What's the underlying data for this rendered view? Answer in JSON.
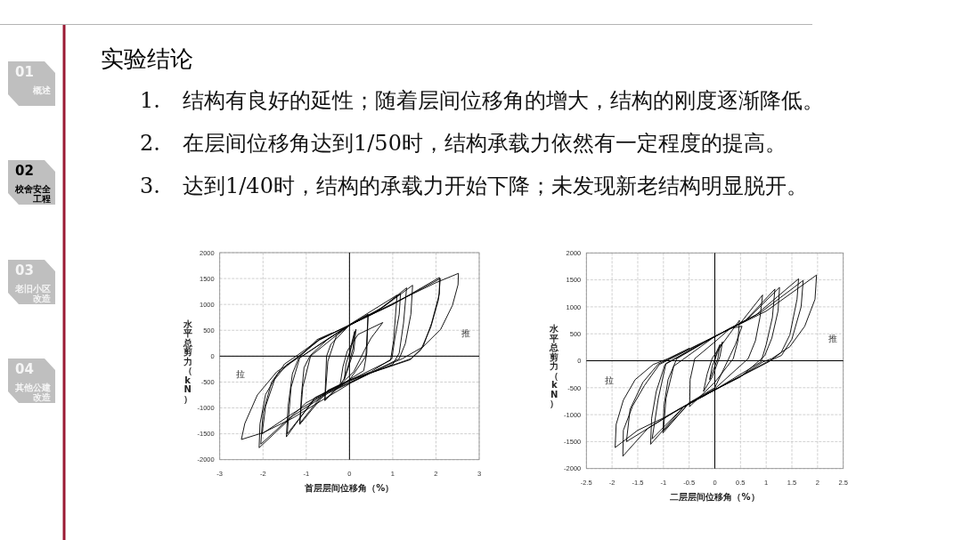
{
  "chart_data": [
    {
      "type": "other",
      "title": "实验结论",
      "annotations": [
        "1.",
        "结构有良好的延性；随着层间位移角的增大，结构的刚度逐渐降低。",
        "2.",
        "在层间位移角达到1/50时，结构承载力依然有一定程度的提高。",
        "3.",
        "达到1/40时，结构的承载力开始下降；未发现新老结构明显脱开。"
      ]
    },
    {
      "type": "other",
      "annotations": [
        "01 概述"
      ],
      "colors": [
        "#f5f5f5"
      ]
    },
    {
      "type": "other",
      "annotations": [
        "02 校舍安全工程"
      ],
      "colors": [
        "#000000"
      ]
    },
    {
      "type": "other",
      "annotations": [
        "03 老旧小区改造"
      ],
      "colors": [
        "#f5f5f5"
      ]
    },
    {
      "type": "other",
      "annotations": [
        "04 其他公建改造"
      ],
      "colors": [
        "#f5f5f5"
      ]
    },
    {
      "type": "line",
      "xlabel": "首层层间位移角（%）",
      "ylabel": "水平总剪力（kN）",
      "xlim": [
        -3,
        3
      ],
      "ylim": [
        -2000,
        2000
      ],
      "xticks": [
        -3,
        -2,
        -1,
        0,
        1,
        2,
        3
      ],
      "yticks": [
        -2000,
        -1500,
        -1000,
        -500,
        0,
        500,
        1000,
        1500,
        2000
      ],
      "grid": true,
      "annotations": [
        "推",
        "拉"
      ],
      "series": [
        {
          "color": "#000000",
          "x": [
            0,
            0.05,
            0.12,
            0.08,
            -0.05,
            -0.12,
            -0.08,
            0.05,
            0.15,
            0.1,
            -0.1,
            -0.22,
            -0.15,
            -0.05,
            0.2,
            0.77,
            0.5,
            0.35,
            0.1,
            -0.3,
            -0.57,
            -0.53,
            -0.43,
            0,
            0.43,
            0.4,
            0.33,
            0,
            -0.3,
            -0.57,
            -0.5,
            -0.3,
            0,
            0.43,
            0.38,
            0,
            -0.5,
            -1.15,
            -1.11,
            -1.05,
            -0.91,
            -0.5,
            0,
            0.6,
            1.18,
            1.15,
            1.05,
            0.98,
            0.5,
            0,
            -0.6,
            -1.15,
            -1.08,
            -0.9,
            0,
            1.1,
            1.02,
            0.95,
            0,
            -0.8,
            -1.46,
            -1.42,
            -1.32,
            -1.18,
            -0.6,
            0,
            0.7,
            1.32,
            1.25,
            1.15,
            1.0,
            0,
            -0.8,
            -1.44,
            -1.35,
            -1.15,
            0,
            0.8,
            1.46,
            1.42,
            1.29,
            1.15,
            0.5,
            -0.5,
            -1.3,
            -2.02,
            -1.94,
            -1.73,
            -1.46,
            -1.11,
            -0.7,
            0,
            1.0,
            2.08,
            2.08,
            1.9,
            1.7,
            1.42,
            0.5,
            -0.5,
            -1.3,
            -2.09,
            -2.07,
            -1.94,
            -1.66,
            -1.25,
            -0.7,
            0,
            1.0,
            2.1,
            2.06,
            1.88,
            1.65,
            1.4,
            0,
            -1.0,
            -2.05,
            -2.0,
            -1.8,
            -1.5,
            -1.2,
            -0.7,
            0,
            1.2,
            2.0,
            2.52,
            2.51,
            2.38,
            2.11,
            1.7,
            1.22,
            0.74,
            0.05,
            -0.63,
            -1.32,
            -2.0,
            -2.5,
            -2.42,
            -2.13,
            -1.68,
            -1.16,
            -0.75,
            -0.4
          ],
          "values": [
            0,
            250,
            480,
            150,
            -250,
            -450,
            -150,
            200,
            520,
            100,
            -400,
            -570,
            -200,
            100,
            420,
            650,
            350,
            120,
            -300,
            -620,
            -850,
            0,
            230,
            600,
            810,
            60,
            -280,
            -450,
            -640,
            -860,
            -100,
            400,
            590,
            800,
            0,
            -460,
            -660,
            -1320,
            -740,
            -220,
            10,
            330,
            600,
            850,
            1210,
            810,
            350,
            -50,
            -300,
            -470,
            -720,
            -1300,
            -600,
            0,
            610,
            1180,
            300,
            -80,
            -470,
            -800,
            -1560,
            -970,
            -340,
            -50,
            280,
            600,
            900,
            1320,
            640,
            60,
            -160,
            -480,
            -830,
            -1500,
            -600,
            -30,
            600,
            960,
            1370,
            810,
            240,
            -50,
            -320,
            -700,
            -1100,
            -1500,
            -970,
            -450,
            -170,
            30,
            320,
            600,
            1000,
            1520,
            1210,
            640,
            180,
            -50,
            -320,
            -720,
            -1150,
            -1770,
            -1310,
            -740,
            -340,
            -50,
            310,
            600,
            1000,
            1500,
            1100,
            560,
            120,
            -70,
            -460,
            -900,
            -1700,
            -1100,
            -500,
            -150,
            20,
            320,
            600,
            1100,
            1420,
            1600,
            1380,
            980,
            520,
            180,
            -50,
            -220,
            -510,
            -850,
            -1200,
            -1480,
            -1610,
            -1300,
            -750,
            -300,
            -20,
            320,
            450
          ]
        }
      ]
    },
    {
      "type": "line",
      "xlabel": "二层层间位移角（%）",
      "ylabel": "水平总剪力（kN）",
      "xlim": [
        -2.5,
        2.5
      ],
      "ylim": [
        -2000,
        2000
      ],
      "xticks": [
        -2.5,
        -2,
        -1.5,
        -1,
        -0.5,
        0,
        0.5,
        1,
        1.5,
        2,
        2.5
      ],
      "yticks": [
        -2000,
        -1500,
        -1000,
        -500,
        0,
        500,
        1000,
        1500,
        2000
      ],
      "grid": true,
      "annotations": [
        "推",
        "拉"
      ],
      "series": [
        {
          "color": "#000000",
          "x": [
            0,
            0.04,
            0.1,
            0.06,
            -0.04,
            -0.1,
            -0.05,
            0.05,
            0.15,
            0.1,
            -0.05,
            -0.22,
            -0.15,
            -0.05,
            0.1,
            0.48,
            0.45,
            0.36,
            0,
            -0.49,
            -0.48,
            -0.39,
            0,
            0.3,
            0.53,
            0.4,
            0.3,
            0,
            -0.5,
            -1.01,
            -0.99,
            -0.91,
            -0.74,
            0,
            0.5,
            0.93,
            0.88,
            0.79,
            0.65,
            0,
            -0.5,
            -1.0,
            -0.95,
            -0.8,
            0,
            0.6,
            1.26,
            1.23,
            1.11,
            0.97,
            0.5,
            0,
            -0.6,
            -1.25,
            -1.23,
            -1.14,
            -0.97,
            0,
            0.6,
            1.17,
            1.12,
            1.0,
            0.9,
            0,
            -0.6,
            -1.22,
            -1.1,
            -0.95,
            0,
            0.8,
            1.63,
            1.6,
            1.46,
            1.29,
            1.05,
            0.5,
            0,
            -0.7,
            -1.3,
            -1.79,
            -1.78,
            -1.6,
            -1.37,
            -1.08,
            0,
            0.9,
            1.72,
            1.68,
            1.5,
            1.3,
            1.0,
            0,
            -0.8,
            -1.72,
            -1.65,
            -1.4,
            -1.1,
            0,
            1.0,
            1.98,
            1.95,
            1.75,
            1.46,
            1.11,
            0.94,
            0.5,
            0,
            -0.5,
            -1.0,
            -1.5,
            -1.94,
            -1.92,
            -1.78,
            -1.55,
            -1.2,
            -0.91,
            -0.5
          ],
          "values": [
            0,
            180,
            300,
            50,
            -200,
            -350,
            -100,
            150,
            350,
            80,
            -300,
            -570,
            -250,
            50,
            250,
            750,
            370,
            40,
            -400,
            -850,
            -350,
            40,
            350,
            600,
            640,
            300,
            100,
            -500,
            -780,
            -1340,
            -840,
            -350,
            40,
            450,
            700,
            1220,
            810,
            370,
            40,
            -520,
            -790,
            -1300,
            -700,
            -100,
            450,
            740,
            1360,
            920,
            420,
            90,
            -300,
            -540,
            -850,
            -1550,
            -1070,
            -570,
            -70,
            450,
            750,
            1330,
            800,
            300,
            -20,
            -540,
            -850,
            -1450,
            -700,
            -50,
            450,
            850,
            1520,
            1140,
            480,
            150,
            -20,
            -290,
            -540,
            -900,
            -1250,
            -1770,
            -1290,
            -840,
            -460,
            -70,
            450,
            900,
            1490,
            1000,
            400,
            100,
            -30,
            -540,
            -960,
            -1500,
            -900,
            -400,
            -60,
            450,
            920,
            1590,
            1140,
            640,
            260,
            40,
            -20,
            -290,
            -540,
            -790,
            -1060,
            -1290,
            -1610,
            -1180,
            -730,
            -350,
            -70,
            40,
            230
          ]
        }
      ]
    }
  ]
}
